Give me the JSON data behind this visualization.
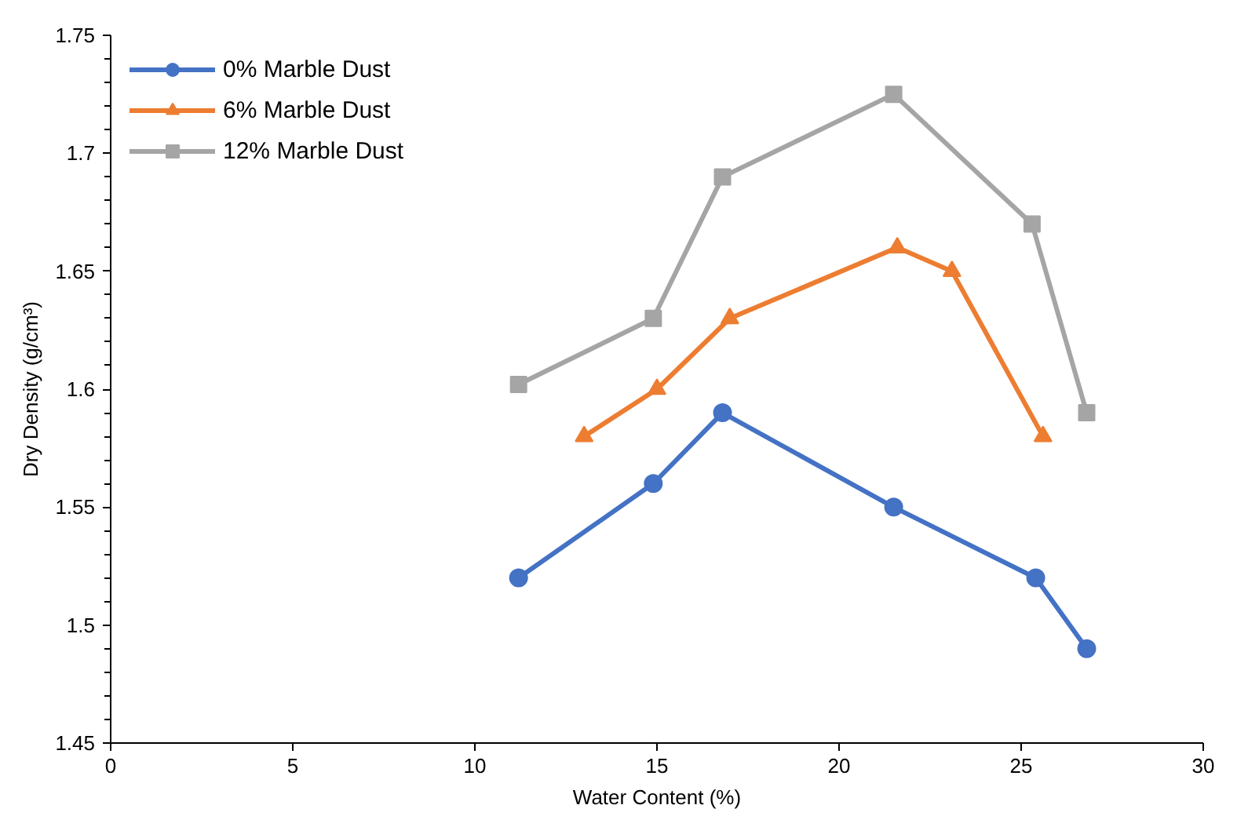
{
  "chart_data": {
    "type": "line",
    "xlabel": "Water Content (%)",
    "ylabel": "Dry Density (g/cm³)",
    "xlim": [
      0,
      30
    ],
    "xticks": [
      0,
      5,
      10,
      15,
      20,
      25,
      30
    ],
    "ylim": [
      1.45,
      1.75
    ],
    "yticks": [
      {
        "value": 1.45,
        "label": "1.45"
      },
      {
        "value": 1.5,
        "label": "1.5"
      },
      {
        "value": 1.55,
        "label": "1.55"
      },
      {
        "value": 1.6,
        "label": "1.6"
      },
      {
        "value": 1.65,
        "label": "1.65"
      },
      {
        "value": 1.7,
        "label": "1.7"
      },
      {
        "value": 1.75,
        "label": "1.75"
      }
    ],
    "grid": false,
    "legend": "top left",
    "series": [
      {
        "name": "0% Marble Dust",
        "color": "#4472c4",
        "marker": "circle",
        "x": [
          11.2,
          14.9,
          16.8,
          21.5,
          25.4,
          26.8
        ],
        "values": [
          1.52,
          1.56,
          1.59,
          1.55,
          1.52,
          1.49
        ]
      },
      {
        "name": "6% Marble Dust",
        "color": "#ed7d31",
        "marker": "triangle",
        "x": [
          13.0,
          15.0,
          17.0,
          21.6,
          23.1,
          25.6
        ],
        "values": [
          1.58,
          1.6,
          1.63,
          1.66,
          1.65,
          1.58
        ]
      },
      {
        "name": "12% Marble Dust",
        "color": "#a5a5a5",
        "marker": "square",
        "x": [
          11.2,
          14.9,
          16.8,
          21.5,
          25.3,
          26.8
        ],
        "values": [
          1.602,
          1.63,
          1.69,
          1.725,
          1.67,
          1.59
        ]
      }
    ]
  }
}
